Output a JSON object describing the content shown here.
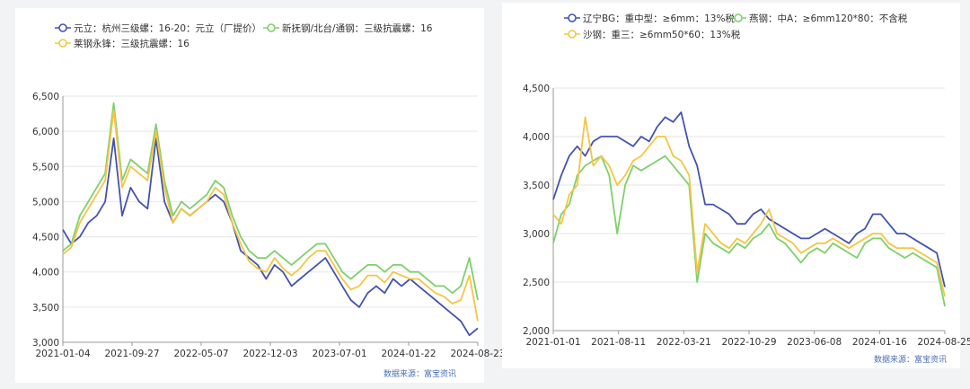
{
  "source_note": "数据来源：富宝资讯",
  "colors": {
    "blue": "#4452b0",
    "green": "#7ed06a",
    "yellow": "#f5c543",
    "grid": "#e6e6e6",
    "axis": "#999999"
  },
  "chart_data": [
    {
      "type": "line",
      "xlabel": "",
      "ylabel": "",
      "x_ticks": [
        "2021-01-04",
        "2021-09-27",
        "2022-05-07",
        "2022-12-03",
        "2023-07-01",
        "2024-01-22",
        "2024-08-23"
      ],
      "y_ticks": [
        "3,000",
        "3,500",
        "4,000",
        "4,500",
        "5,000",
        "5,500",
        "6,000",
        "6,500"
      ],
      "ylim": [
        3000,
        6500
      ],
      "grid": true,
      "legend_position": "top",
      "series": [
        {
          "name": "元立：杭州三级螺：16-20：元立（厂提价）",
          "color": "blue",
          "values": [
            4600,
            4400,
            4500,
            4700,
            4800,
            5000,
            5900,
            4800,
            5200,
            5000,
            4900,
            5900,
            5000,
            4700,
            4900,
            4800,
            4900,
            5000,
            5100,
            5000,
            4700,
            4300,
            4200,
            4100,
            3900,
            4100,
            4000,
            3800,
            3900,
            4000,
            4100,
            4200,
            4000,
            3800,
            3600,
            3500,
            3700,
            3800,
            3700,
            3900,
            3800,
            3900,
            3800,
            3700,
            3600,
            3500,
            3400,
            3300,
            3100,
            3200
          ]
        },
        {
          "name": "新抚钢/北台/通钢：三级抗震螺：16",
          "color": "green",
          "values": [
            4300,
            4400,
            4800,
            5000,
            5200,
            5400,
            6400,
            5300,
            5600,
            5500,
            5400,
            6100,
            5300,
            4800,
            5000,
            4900,
            5000,
            5100,
            5300,
            5200,
            4800,
            4500,
            4300,
            4200,
            4200,
            4300,
            4200,
            4100,
            4200,
            4300,
            4400,
            4400,
            4200,
            4000,
            3900,
            4000,
            4100,
            4100,
            4000,
            4100,
            4100,
            4000,
            4000,
            3900,
            3800,
            3800,
            3700,
            3800,
            4200,
            3600
          ]
        },
        {
          "name": "莱钢永锋：三级抗震螺：16",
          "color": "yellow",
          "values": [
            4250,
            4350,
            4700,
            4900,
            5100,
            5300,
            6300,
            5200,
            5500,
            5400,
            5300,
            6000,
            5200,
            4700,
            4900,
            4800,
            4900,
            5000,
            5200,
            5100,
            4700,
            4400,
            4150,
            4050,
            4000,
            4200,
            4050,
            3950,
            4050,
            4200,
            4300,
            4300,
            4100,
            3900,
            3750,
            3800,
            3950,
            3950,
            3850,
            4000,
            3950,
            3900,
            3900,
            3800,
            3700,
            3650,
            3550,
            3600,
            3950,
            3300
          ]
        }
      ]
    },
    {
      "type": "line",
      "xlabel": "",
      "ylabel": "",
      "x_ticks": [
        "2021-01-01",
        "2021-08-11",
        "2022-03-21",
        "2022-10-29",
        "2023-06-08",
        "2024-01-16",
        "2024-08-25"
      ],
      "y_ticks": [
        "2,000",
        "2,500",
        "3,000",
        "3,500",
        "4,000",
        "4,500"
      ],
      "ylim": [
        2000,
        4500
      ],
      "grid": true,
      "legend_position": "top",
      "series": [
        {
          "name": "辽宁BG：重中型：≥6mm：13%税",
          "color": "blue",
          "values": [
            3350,
            3600,
            3800,
            3900,
            3800,
            3950,
            4000,
            4000,
            4000,
            3950,
            3900,
            4000,
            3950,
            4100,
            4200,
            4150,
            4250,
            3900,
            3700,
            3300,
            3300,
            3250,
            3200,
            3100,
            3100,
            3200,
            3250,
            3150,
            3100,
            3050,
            3000,
            2950,
            2950,
            3000,
            3050,
            3000,
            2950,
            2900,
            3000,
            3050,
            3200,
            3200,
            3100,
            3000,
            3000,
            2950,
            2900,
            2850,
            2800,
            2450
          ]
        },
        {
          "name": "燕钢：中A：≥6mm120*80：不含税",
          "color": "green",
          "values": [
            2900,
            3200,
            3300,
            3600,
            3700,
            3750,
            3800,
            3600,
            3000,
            3500,
            3700,
            3650,
            3700,
            3750,
            3800,
            3700,
            3600,
            3500,
            2500,
            3000,
            2900,
            2850,
            2800,
            2900,
            2850,
            2950,
            3000,
            3100,
            2950,
            2900,
            2800,
            2700,
            2800,
            2850,
            2800,
            2900,
            2850,
            2800,
            2750,
            2900,
            2950,
            2950,
            2850,
            2800,
            2750,
            2800,
            2750,
            2700,
            2650,
            2250
          ]
        },
        {
          "name": "沙钢：重三：≥6mm50*60：13%税",
          "color": "yellow",
          "values": [
            3200,
            3100,
            3400,
            3500,
            4200,
            3700,
            3800,
            3700,
            3500,
            3600,
            3750,
            3800,
            3900,
            4000,
            4000,
            3800,
            3750,
            3600,
            2600,
            3100,
            3000,
            2900,
            2850,
            2950,
            2900,
            3000,
            3100,
            3250,
            3000,
            2950,
            2900,
            2800,
            2850,
            2900,
            2900,
            2950,
            2900,
            2850,
            2900,
            2950,
            3000,
            3000,
            2900,
            2850,
            2850,
            2850,
            2800,
            2750,
            2700,
            2350
          ]
        }
      ]
    }
  ]
}
